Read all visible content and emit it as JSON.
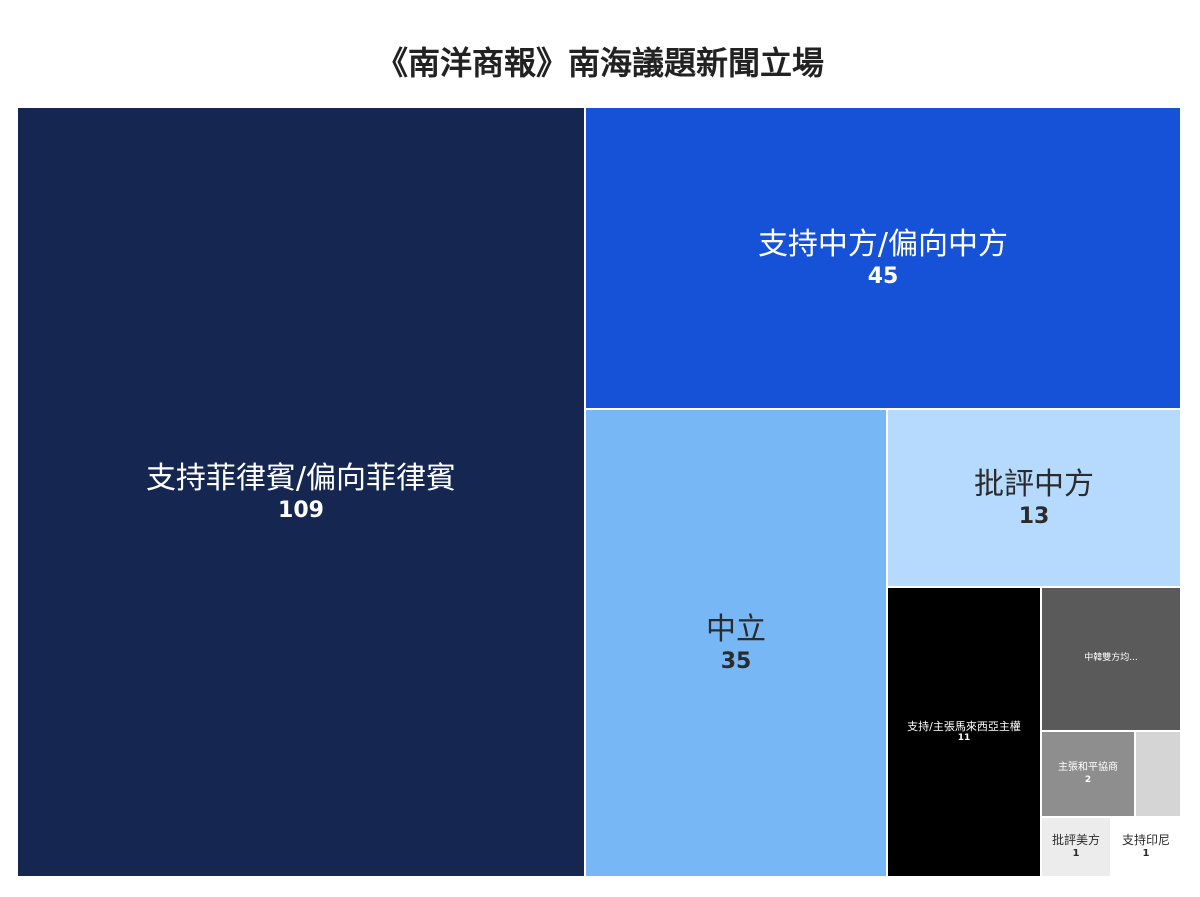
{
  "chart_data": {
    "type": "treemap",
    "title": "《南洋商報》南海議題新聞立場",
    "items": [
      {
        "label": "支持菲律賓/偏向菲律賓",
        "value": 109,
        "color": "#152751",
        "text_color": "#ffffff"
      },
      {
        "label": "支持中方/偏向中方",
        "value": 45,
        "color": "#1652d8",
        "text_color": "#ffffff"
      },
      {
        "label": "中立",
        "value": 35,
        "color": "#78b7f5",
        "text_color": "#2b2b2b"
      },
      {
        "label": "批評中方",
        "value": 13,
        "color": "#b5dafd",
        "text_color": "#2b2b2b"
      },
      {
        "label": "支持/主張馬來西亞主權",
        "value": 11,
        "color": "#000000",
        "text_color": "#ffffff"
      },
      {
        "label": "中韓雙方均...",
        "value": 4,
        "color": "#5a5a5a",
        "text_color": "#ffffff",
        "value_hidden": true
      },
      {
        "label": "主張和平協商",
        "value": 2,
        "color": "#8e8e8e",
        "text_color": "#ffffff"
      },
      {
        "label": "",
        "value": 1,
        "color": "#d5d5d5",
        "text_color": "#2b2b2b",
        "value_hidden": true
      },
      {
        "label": "批評美方",
        "value": 1,
        "color": "#ececec",
        "text_color": "#2b2b2b"
      },
      {
        "label": "支持印尼",
        "value": 1,
        "color": "#ffffff",
        "text_color": "#2b2b2b"
      }
    ]
  }
}
